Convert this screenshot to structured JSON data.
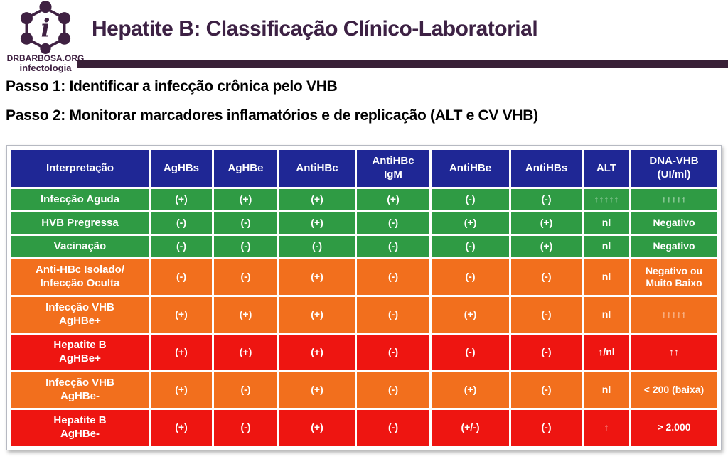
{
  "logo": {
    "org": "DRBARBOSA.ORG",
    "subtitle": "infectologia"
  },
  "header": {
    "title": "Hepatite B: Classificação Clínico-Laboratorial"
  },
  "steps": [
    "Passo 1: Identificar a infecção crônica pelo VHB",
    "Passo 2: Monitorar marcadores inflamatórios e de replicação (ALT e CV VHB)"
  ],
  "colors": {
    "brand_purple": "#3d2144",
    "title_bar": "#392037",
    "table_header_navy": "#1f2795",
    "row_green": "#2f9b44",
    "row_orange": "#f26f1d",
    "row_red": "#ee1511",
    "cell_text": "#ffffff"
  },
  "table": {
    "columns": [
      "Interpretação",
      "AgHBs",
      "AgHBe",
      "AntiHBc",
      "AntiHBc\nIgM",
      "AntiHBe",
      "AntiHBs",
      "ALT",
      "DNA-VHB\n(UI/ml)"
    ],
    "rows": [
      {
        "label": "Infecção Aguda",
        "color": "green",
        "cells": [
          "(+)",
          "(+)",
          "(+)",
          "(+)",
          "(-)",
          "(-)",
          "↑↑↑↑↑",
          "↑↑↑↑↑"
        ]
      },
      {
        "label": "HVB Pregressa",
        "color": "green",
        "cells": [
          "(-)",
          "(-)",
          "(+)",
          "(-)",
          "(+)",
          "(+)",
          "nl",
          "Negativo"
        ]
      },
      {
        "label": "Vacinação",
        "color": "green",
        "cells": [
          "(-)",
          "(-)",
          "(-)",
          "(-)",
          "(-)",
          "(+)",
          "nl",
          "Negativo"
        ]
      },
      {
        "label": "Anti-HBc Isolado/\nInfecção Oculta",
        "color": "orange",
        "cells": [
          "(-)",
          "(-)",
          "(+)",
          "(-)",
          "(-)",
          "(-)",
          "nl",
          "Negativo ou\nMuito Baixo"
        ]
      },
      {
        "label": "Infecção VHB\nAgHBe+",
        "color": "orange",
        "cells": [
          "(+)",
          "(+)",
          "(+)",
          "(-)",
          "(+)",
          "(-)",
          "nl",
          "↑↑↑↑↑"
        ]
      },
      {
        "label": "Hepatite B\nAgHBe+",
        "color": "red",
        "cells": [
          "(+)",
          "(+)",
          "(+)",
          "(-)",
          "(-)",
          "(-)",
          "↑/nl",
          "↑↑"
        ]
      },
      {
        "label": "Infecção VHB\nAgHBe-",
        "color": "orange",
        "cells": [
          "(+)",
          "(-)",
          "(+)",
          "(-)",
          "(+)",
          "(-)",
          "nl",
          "< 200 (baixa)"
        ]
      },
      {
        "label": "Hepatite B\nAgHBe-",
        "color": "red",
        "cells": [
          "(+)",
          "(-)",
          "(+)",
          "(-)",
          "(+/-)",
          "(-)",
          "↑",
          "> 2.000"
        ]
      }
    ]
  }
}
